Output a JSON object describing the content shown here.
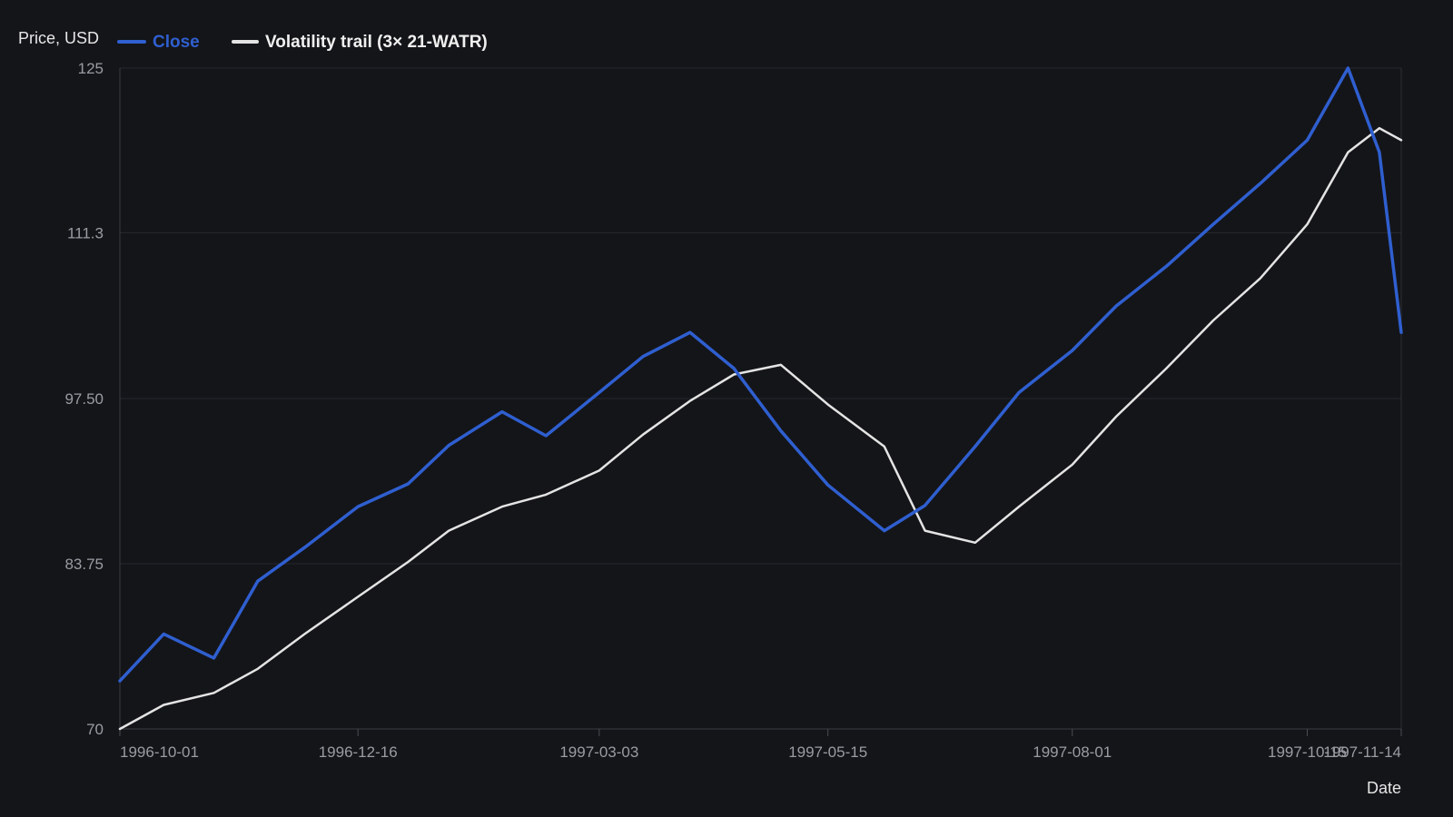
{
  "chart_data": {
    "type": "line",
    "title": "",
    "ylabel": "Price, USD",
    "xlabel": "Date",
    "ylim": [
      70,
      125
    ],
    "y_ticks": [
      "70",
      "83.75",
      "97.50",
      "111.3",
      "125"
    ],
    "x_ticks": [
      {
        "date": "1996-10-01",
        "label": "1996-10-01"
      },
      {
        "date": "1996-12-16",
        "label": "1996-12-16"
      },
      {
        "date": "1997-03-03",
        "label": "1997-03-03"
      },
      {
        "date": "1997-05-15",
        "label": "1997-05-15"
      },
      {
        "date": "1997-08-01",
        "label": "1997-08-01"
      },
      {
        "date": "1997-10-15",
        "label": "1997-10-15"
      },
      {
        "date": "1997-11-14",
        "label": "1997-11-14"
      }
    ],
    "xlim": [
      "1996-10-01",
      "1997-11-14"
    ],
    "grid": true,
    "legend_position": "top-left",
    "x": [
      "1996-10-01",
      "1996-10-15",
      "1996-10-31",
      "1996-11-14",
      "1996-11-29",
      "1996-12-16",
      "1997-01-01",
      "1997-01-14",
      "1997-01-31",
      "1997-02-14",
      "1997-03-03",
      "1997-03-17",
      "1997-04-01",
      "1997-04-15",
      "1997-04-30",
      "1997-05-15",
      "1997-06-02",
      "1997-06-15",
      "1997-07-01",
      "1997-07-15",
      "1997-08-01",
      "1997-08-15",
      "1997-08-31",
      "1997-09-15",
      "1997-09-30",
      "1997-10-15",
      "1997-10-28",
      "1997-11-07",
      "1997-11-14"
    ],
    "series": [
      {
        "name": "Close",
        "color": "#2f5fd0",
        "values": [
          74.0,
          77.9,
          75.9,
          82.3,
          85.1,
          88.5,
          90.4,
          93.6,
          96.4,
          94.4,
          98.0,
          101.0,
          103.0,
          100.0,
          94.8,
          90.3,
          86.5,
          88.6,
          93.5,
          98.0,
          101.5,
          105.2,
          108.5,
          112.0,
          115.4,
          119.0,
          125.0,
          118.0,
          103.0
        ]
      },
      {
        "name": "Volatility trail (3× 21-WATR)",
        "color": "#e4e4e4",
        "values": [
          70.0,
          72.0,
          73.0,
          75.0,
          77.9,
          81.0,
          83.9,
          86.5,
          88.5,
          89.5,
          91.5,
          94.5,
          97.3,
          99.5,
          100.3,
          97.0,
          93.5,
          86.5,
          85.5,
          88.5,
          92.0,
          96.0,
          100.0,
          104.0,
          107.5,
          112.0,
          118.0,
          120.0,
          119.0
        ]
      }
    ]
  }
}
